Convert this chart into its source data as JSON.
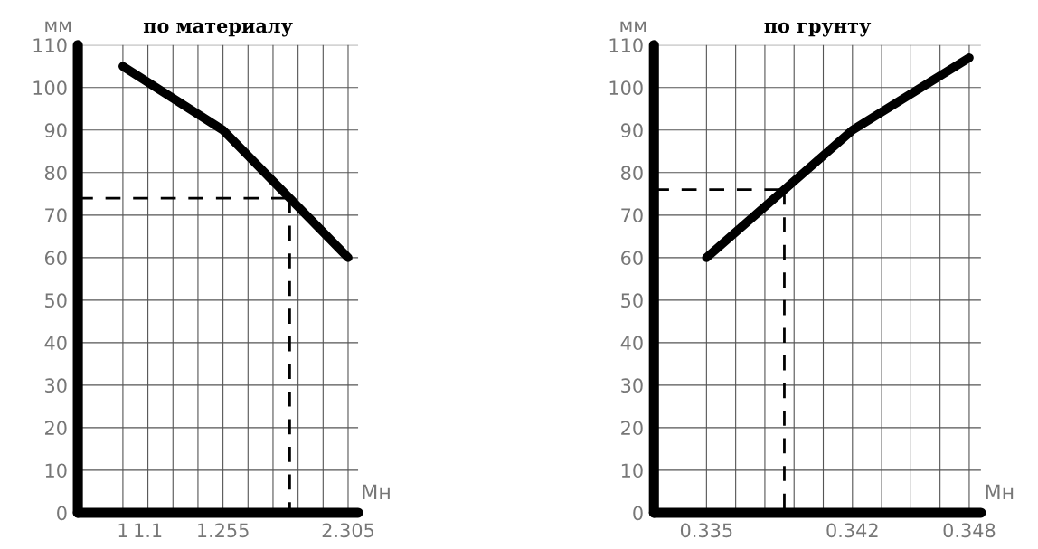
{
  "chart_data": [
    {
      "type": "line",
      "title": "по материалу",
      "xlabel": "Мн",
      "ylabel": "мм",
      "categories": [
        "1",
        "1.1",
        null,
        null,
        "1.255",
        null,
        null,
        null,
        null,
        "2.305"
      ],
      "series": [
        {
          "color": "#000000",
          "values": [
            105,
            null,
            null,
            null,
            90,
            null,
            null,
            null,
            null,
            60
          ]
        }
      ],
      "ylim": [
        0,
        110
      ],
      "yticks": [
        0,
        10,
        20,
        30,
        40,
        50,
        60,
        70,
        80,
        90,
        100,
        110
      ],
      "ref_lines": [
        {
          "axis": "y",
          "value": 74,
          "color": "#000000",
          "line_style": "dashed"
        }
      ],
      "grid": true
    },
    {
      "type": "line",
      "title": "по грунту",
      "xlabel": "Мн",
      "ylabel": "мм",
      "categories": [
        "0.335",
        null,
        null,
        null,
        null,
        "0.342",
        null,
        null,
        null,
        "0.348"
      ],
      "series": [
        {
          "color": "#000000",
          "values": [
            60,
            null,
            null,
            null,
            null,
            90,
            null,
            null,
            null,
            107
          ]
        }
      ],
      "ylim": [
        0,
        110
      ],
      "yticks": [
        0,
        10,
        20,
        30,
        40,
        50,
        60,
        70,
        80,
        90,
        100,
        110
      ],
      "ref_lines": [
        {
          "axis": "y",
          "value": 76,
          "color": "#000000",
          "line_style": "dashed"
        }
      ],
      "grid": true
    }
  ]
}
